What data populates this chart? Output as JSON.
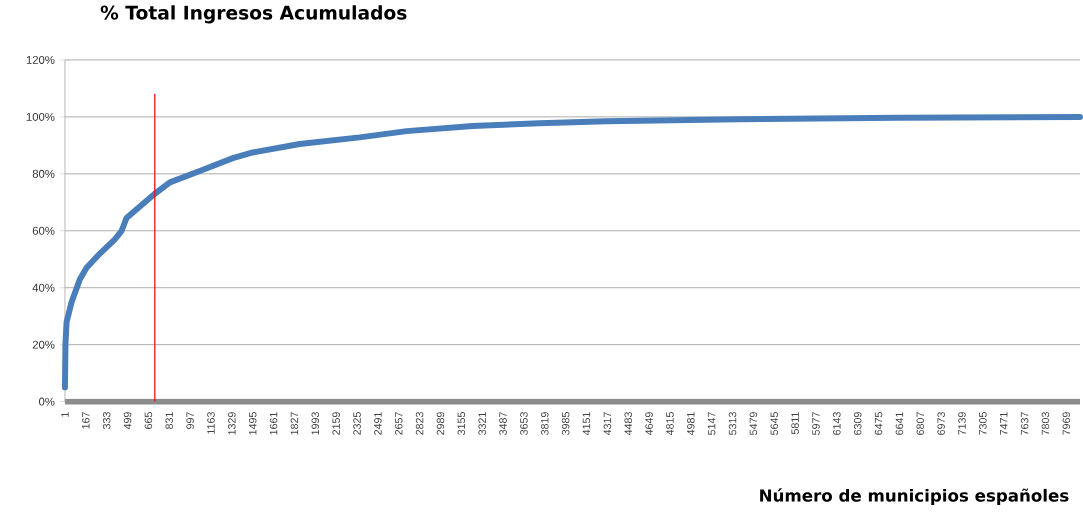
{
  "chart_data": {
    "type": "line",
    "title": "% Total Ingresos Acumulados",
    "xlabel": "Número de municipios españoles",
    "series": [
      {
        "color": "#4a7ebb",
        "x": [
          1,
          5,
          14,
          54,
          120,
          173,
          279,
          398,
          452,
          491,
          597,
          716,
          836,
          1074,
          1337,
          1495,
          1869,
          2346,
          2720,
          3244,
          3777,
          4309,
          5367,
          6638,
          8078
        ],
        "values": [
          5,
          20,
          28,
          35,
          43,
          47,
          52,
          57,
          60,
          64.5,
          68.5,
          73,
          77,
          81,
          85.5,
          87.5,
          90.5,
          92.8,
          95,
          96.8,
          97.8,
          98.5,
          99.2,
          99.7,
          100
        ]
      }
    ],
    "xlim": [
      1,
      8078
    ],
    "xticks": [
      1,
      167,
      333,
      499,
      665,
      831,
      997,
      1163,
      1329,
      1495,
      1661,
      1827,
      1993,
      2159,
      2325,
      2491,
      2657,
      2823,
      2989,
      3155,
      3321,
      3487,
      3653,
      3819,
      3985,
      4151,
      4317,
      4483,
      4649,
      4815,
      4981,
      5147,
      5313,
      5479,
      5645,
      5811,
      5977,
      6143,
      6309,
      6475,
      6641,
      6807,
      6973,
      7139,
      7305,
      7471,
      7637,
      7803,
      7969
    ],
    "ylim": [
      0,
      120
    ],
    "yticks": [
      {
        "value": 0,
        "label": "0%"
      },
      {
        "value": 20,
        "label": "20%"
      },
      {
        "value": 40,
        "label": "40%"
      },
      {
        "value": 60,
        "label": "60%"
      },
      {
        "value": 80,
        "label": "80%"
      },
      {
        "value": 100,
        "label": "100%"
      },
      {
        "value": 120,
        "label": "120%"
      }
    ],
    "ref_lines": [
      {
        "axis": "x",
        "value": 716,
        "color": "#ff0000"
      }
    ],
    "grid": "y",
    "marker": "none",
    "line_style": "solid"
  }
}
